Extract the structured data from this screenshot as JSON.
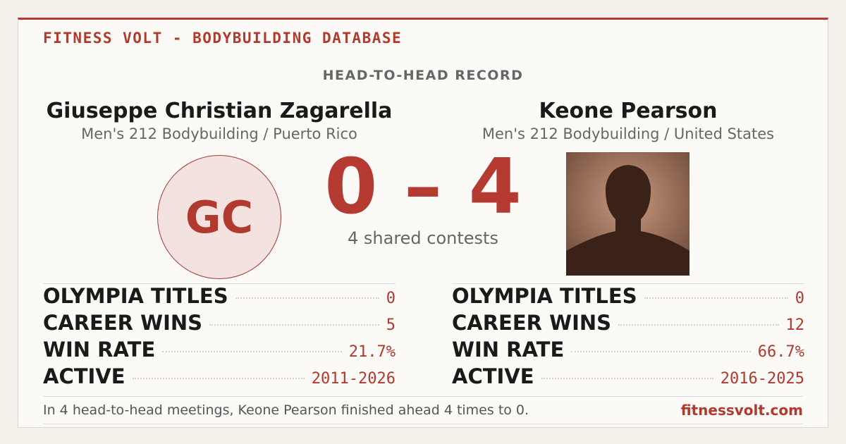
{
  "header": {
    "brand": "FITNESS VOLT - BODYBUILDING DATABASE",
    "section": "HEAD-TO-HEAD RECORD"
  },
  "athletes": [
    {
      "name": "Giuseppe Christian Zagarella",
      "division": "Men's 212 Bodybuilding / Puerto Rico",
      "initials": "GC",
      "stats": [
        {
          "label": "OLYMPIA TITLES",
          "value": "0"
        },
        {
          "label": "CAREER WINS",
          "value": "5"
        },
        {
          "label": "WIN RATE",
          "value": "21.7%"
        },
        {
          "label": "ACTIVE",
          "value": "2011-2026"
        }
      ]
    },
    {
      "name": "Keone Pearson",
      "division": "Men's 212 Bodybuilding / United States",
      "stats": [
        {
          "label": "OLYMPIA TITLES",
          "value": "0"
        },
        {
          "label": "CAREER WINS",
          "value": "12"
        },
        {
          "label": "WIN RATE",
          "value": "66.7%"
        },
        {
          "label": "ACTIVE",
          "value": "2016-2025"
        }
      ]
    }
  ],
  "score": {
    "left": 0,
    "separator": "–",
    "right": 4,
    "caption": "4 shared contests"
  },
  "footer": {
    "summary": "In 4 head-to-head meetings, Keone Pearson finished ahead 4 times to 0.",
    "site": "fitnessvolt.com"
  }
}
